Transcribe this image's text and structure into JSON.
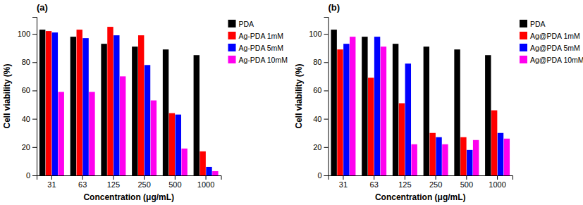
{
  "chart_data": [
    {
      "type": "bar",
      "title": "(a)",
      "xlabel": "Concentration (μg/mL)",
      "ylabel": "Cell viability (%)",
      "categories": [
        "31",
        "63",
        "125",
        "250",
        "500",
        "1000"
      ],
      "series": [
        {
          "name": "PDA",
          "color": "#000000",
          "values": [
            103,
            98,
            93,
            91,
            89,
            85
          ]
        },
        {
          "name": "Ag-PDA 1mM",
          "color": "#ff0000",
          "values": [
            102,
            103,
            105,
            99,
            44,
            17
          ]
        },
        {
          "name": "Ag-PDA 5mM",
          "color": "#0000ff",
          "values": [
            101,
            97,
            99,
            78,
            43,
            6
          ]
        },
        {
          "name": "Ag-PDA 10mM",
          "color": "#ff00ee",
          "values": [
            59,
            59,
            70,
            53,
            19,
            3
          ]
        }
      ],
      "ylim": [
        0,
        112
      ],
      "yticks": [
        0,
        20,
        40,
        60,
        80,
        100
      ],
      "legend": "right"
    },
    {
      "type": "bar",
      "title": "(b)",
      "xlabel": "Concentration (μg/mL)",
      "ylabel": "Cell viability (%)",
      "categories": [
        "31",
        "63",
        "125",
        "250",
        "500",
        "1000"
      ],
      "series": [
        {
          "name": "PDA",
          "color": "#000000",
          "values": [
            103,
            98,
            93,
            91,
            89,
            85
          ]
        },
        {
          "name": "Ag@PDA 1mM",
          "color": "#ff0000",
          "values": [
            89,
            69,
            51,
            30,
            27,
            46
          ]
        },
        {
          "name": "Ag@PDA 5mM",
          "color": "#0000ff",
          "values": [
            93,
            98,
            79,
            27,
            18,
            30
          ]
        },
        {
          "name": "Ag@PDA 10mM",
          "color": "#ff00ee",
          "values": [
            98,
            91,
            22,
            22,
            25,
            26
          ]
        }
      ],
      "ylim": [
        0,
        112
      ],
      "yticks": [
        0,
        20,
        40,
        60,
        80,
        100
      ],
      "legend": "right"
    }
  ]
}
